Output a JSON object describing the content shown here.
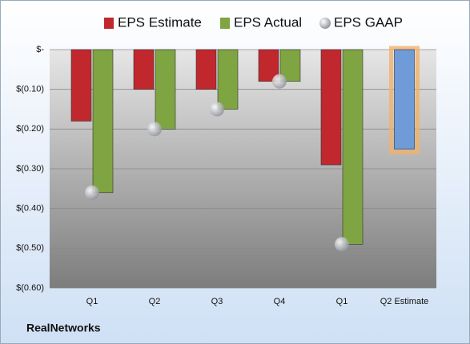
{
  "chart_data": {
    "type": "bar",
    "categories": [
      "Q1",
      "Q2",
      "Q3",
      "Q4",
      "Q1",
      "Q2 Estimate"
    ],
    "series": [
      {
        "name": "EPS Estimate",
        "color": "#c0282d",
        "colors": [
          "#c0282d",
          "#c0282d",
          "#c0282d",
          "#c0282d",
          "#c0282d",
          "#6f9bd8"
        ],
        "values": [
          -0.18,
          -0.1,
          -0.1,
          -0.08,
          -0.29,
          -0.25
        ]
      },
      {
        "name": "EPS Actual",
        "color": "#7fa442",
        "values": [
          -0.36,
          -0.2,
          -0.15,
          -0.08,
          -0.49,
          null
        ]
      },
      {
        "name": "EPS GAAP",
        "type": "scatter",
        "color": "#b8bcc4",
        "values": [
          -0.36,
          -0.2,
          -0.15,
          -0.08,
          -0.49,
          null
        ]
      }
    ],
    "ylim": [
      -0.6,
      0
    ],
    "yticks": [
      {
        "value": 0,
        "label": "$-"
      },
      {
        "value": -0.1,
        "label": "$(0.10)"
      },
      {
        "value": -0.2,
        "label": "$(0.20)"
      },
      {
        "value": -0.3,
        "label": "$(0.30)"
      },
      {
        "value": -0.4,
        "label": "$(0.40)"
      },
      {
        "value": -0.5,
        "label": "$(0.50)"
      },
      {
        "value": -0.6,
        "label": "$(0.60)"
      }
    ],
    "grid": true,
    "legend": "top",
    "footer": "RealNetworks"
  }
}
